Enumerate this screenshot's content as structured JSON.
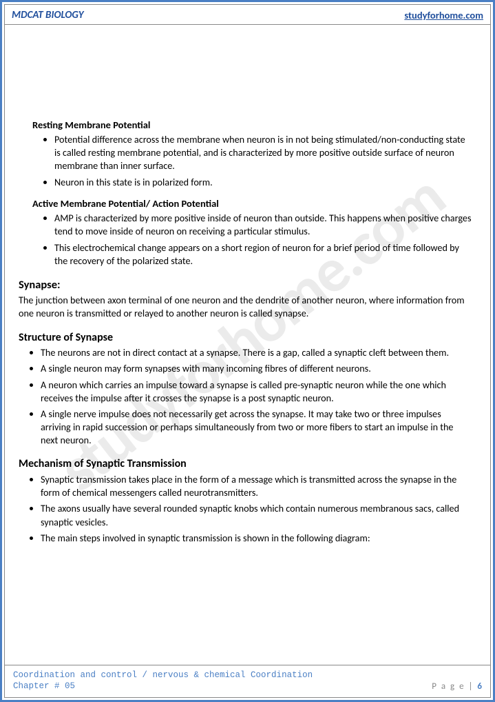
{
  "header": {
    "left": "MDCAT BIOLOGY",
    "right": "studyforhome.com"
  },
  "watermark": "studyforhome.com",
  "section1": {
    "heading": "Resting Membrane Potential",
    "bullets": [
      "Potential difference across the membrane when neuron is in not being stimulated/non-conducting state is called resting membrane potential, and is characterized by more positive outside surface of neuron membrane than inner surface.",
      "Neuron in this state is in polarized form."
    ]
  },
  "section2": {
    "heading": "Active Membrane Potential/ Action Potential",
    "bullets": [
      "AMP is characterized by more positive inside of neuron than outside. This happens when positive charges tend to move inside of neuron on receiving a particular stimulus.",
      "This electrochemical change appears on a short region of neuron for a brief period of time followed by the recovery of the polarized state."
    ]
  },
  "synapse": {
    "heading": "Synapse:",
    "text": "The junction between axon terminal of one neuron and the dendrite of another neuron, where information from one neuron is transmitted or relayed to another neuron is called synapse."
  },
  "structure": {
    "heading": "Structure of Synapse",
    "bullets": [
      "The neurons are not in direct contact at a synapse. There is a gap, called a synaptic cleft between them.",
      "A single neuron may form synapses with many incoming fibres of different neurons.",
      "A neuron which carries an impulse toward a synapse is called pre-synaptic neuron while the one which receives the impulse after it crosses the synapse is a post synaptic neuron.",
      "A single nerve impulse does not necessarily get across the synapse. It may take two or three impulses arriving in rapid succession or perhaps simultaneously from two or more fibers to start an impulse in the next neuron."
    ]
  },
  "mechanism": {
    "heading": "Mechanism of Synaptic Transmission",
    "bullets": [
      "Synaptic transmission takes place in the form of a message which is transmitted across the synapse in the form of chemical messengers called neurotransmitters.",
      "The axons usually have several rounded synaptic knobs which contain numerous membranous sacs, called synaptic vesicles.",
      "The main steps involved in synaptic transmission is shown in the following diagram:"
    ]
  },
  "footer": {
    "line1": "Coordination and control / nervous & chemical Coordination",
    "line2": "Chapter # 05",
    "page_label": "P a g e  | ",
    "page_num": "6"
  }
}
